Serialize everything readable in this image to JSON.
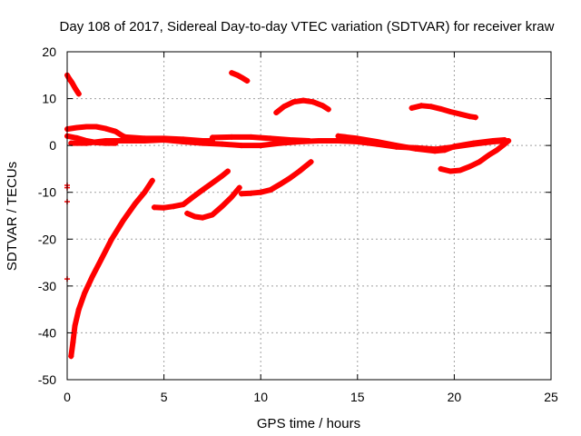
{
  "chart_data": {
    "type": "scatter",
    "title": "Day 108 of 2017, Sidereal Day-to-day VTEC variation (SDTVAR) for receiver kraw",
    "xlabel": "GPS time / hours",
    "ylabel": "SDTVAR / TECUs",
    "xlim": [
      0,
      25
    ],
    "ylim": [
      -50,
      20
    ],
    "xticks": [
      0,
      5,
      10,
      15,
      20,
      25
    ],
    "yticks": [
      -50,
      -40,
      -30,
      -20,
      -10,
      0,
      10,
      20
    ],
    "grid": true,
    "legend": "none",
    "color": "#ff0000",
    "series": [
      {
        "values": [
          [
            0.0,
            15.0
          ],
          [
            0.1,
            14.3
          ],
          [
            0.25,
            13.4
          ],
          [
            0.4,
            12.3
          ],
          [
            0.6,
            11.0
          ]
        ]
      },
      {
        "values": [
          [
            0.2,
            -45.0
          ],
          [
            0.3,
            -42.0
          ],
          [
            0.4,
            -38.5
          ],
          [
            0.6,
            -35.0
          ],
          [
            0.9,
            -31.5
          ],
          [
            1.3,
            -28.0
          ],
          [
            1.8,
            -24.0
          ],
          [
            2.3,
            -20.0
          ],
          [
            2.9,
            -16.0
          ],
          [
            3.5,
            -12.5
          ],
          [
            4.0,
            -10.0
          ],
          [
            4.4,
            -7.5
          ]
        ]
      },
      {
        "values": [
          [
            4.5,
            -13.2
          ],
          [
            5.0,
            -13.3
          ],
          [
            5.5,
            -13.0
          ],
          [
            6.0,
            -12.6
          ],
          [
            6.5,
            -11.0
          ],
          [
            7.0,
            -9.5
          ],
          [
            7.5,
            -8.0
          ],
          [
            8.0,
            -6.5
          ],
          [
            8.3,
            -5.5
          ]
        ]
      },
      {
        "values": [
          [
            6.2,
            -14.5
          ],
          [
            6.6,
            -15.2
          ],
          [
            7.0,
            -15.4
          ],
          [
            7.5,
            -14.8
          ],
          [
            8.0,
            -13.0
          ],
          [
            8.5,
            -11.0
          ],
          [
            8.9,
            -9.0
          ]
        ]
      },
      {
        "values": [
          [
            9.0,
            -10.3
          ],
          [
            9.5,
            -10.2
          ],
          [
            10.0,
            -10.0
          ],
          [
            10.5,
            -9.5
          ],
          [
            11.0,
            -8.3
          ],
          [
            11.5,
            -7.0
          ],
          [
            12.0,
            -5.5
          ],
          [
            12.3,
            -4.5
          ],
          [
            12.6,
            -3.5
          ]
        ]
      },
      {
        "values": [
          [
            8.5,
            15.5
          ],
          [
            8.8,
            15.0
          ],
          [
            9.1,
            14.3
          ],
          [
            9.3,
            13.8
          ]
        ]
      },
      {
        "values": [
          [
            10.8,
            7.0
          ],
          [
            11.2,
            8.3
          ],
          [
            11.7,
            9.3
          ],
          [
            12.2,
            9.6
          ],
          [
            12.7,
            9.3
          ],
          [
            13.2,
            8.5
          ],
          [
            13.5,
            7.7
          ]
        ]
      },
      {
        "values": [
          [
            17.8,
            8.0
          ],
          [
            18.3,
            8.5
          ],
          [
            18.8,
            8.3
          ],
          [
            19.3,
            7.8
          ],
          [
            19.8,
            7.2
          ],
          [
            20.3,
            6.7
          ],
          [
            20.8,
            6.2
          ],
          [
            21.1,
            6.0
          ]
        ]
      },
      {
        "values": [
          [
            19.3,
            -5.0
          ],
          [
            19.8,
            -5.5
          ],
          [
            20.3,
            -5.3
          ],
          [
            20.8,
            -4.5
          ],
          [
            21.3,
            -3.5
          ],
          [
            21.8,
            -2.0
          ],
          [
            22.2,
            -1.0
          ],
          [
            22.6,
            0.3
          ],
          [
            22.8,
            1.0
          ]
        ]
      },
      {
        "values": [
          [
            0.0,
            3.5
          ],
          [
            0.5,
            3.8
          ],
          [
            1.0,
            4.0
          ],
          [
            1.5,
            4.0
          ],
          [
            2.0,
            3.6
          ],
          [
            2.5,
            3.0
          ],
          [
            2.8,
            2.2
          ],
          [
            3.2,
            1.3
          ]
        ]
      },
      {
        "values": [
          [
            0.0,
            2.0
          ],
          [
            0.5,
            1.6
          ],
          [
            1.0,
            1.0
          ],
          [
            1.5,
            0.6
          ],
          [
            2.0,
            0.5
          ],
          [
            2.5,
            0.5
          ]
        ]
      },
      {
        "values": [
          [
            0.2,
            0.5
          ],
          [
            1.0,
            0.5
          ],
          [
            2.0,
            1.0
          ],
          [
            3.0,
            1.0
          ],
          [
            4.0,
            1.0
          ],
          [
            5.0,
            1.2
          ],
          [
            6.0,
            0.8
          ],
          [
            7.0,
            0.5
          ],
          [
            8.0,
            0.3
          ],
          [
            9.0,
            0.0
          ],
          [
            10.0,
            0.0
          ],
          [
            11.0,
            0.5
          ],
          [
            12.0,
            0.8
          ],
          [
            13.0,
            1.0
          ],
          [
            14.0,
            1.0
          ],
          [
            15.0,
            0.8
          ],
          [
            16.0,
            0.3
          ],
          [
            17.0,
            -0.3
          ],
          [
            18.0,
            -0.5
          ],
          [
            19.0,
            -0.8
          ],
          [
            20.0,
            -0.3
          ],
          [
            21.0,
            0.3
          ],
          [
            22.0,
            0.8
          ],
          [
            22.8,
            1.0
          ]
        ]
      },
      {
        "values": [
          [
            3.0,
            1.8
          ],
          [
            4.0,
            1.5
          ],
          [
            5.0,
            1.5
          ],
          [
            6.0,
            1.3
          ],
          [
            7.0,
            1.0
          ],
          [
            7.5,
            1.0
          ]
        ]
      },
      {
        "values": [
          [
            7.5,
            1.7
          ],
          [
            8.5,
            1.8
          ],
          [
            9.5,
            1.8
          ],
          [
            10.5,
            1.5
          ],
          [
            11.5,
            1.2
          ],
          [
            12.5,
            1.0
          ]
        ]
      },
      {
        "values": [
          [
            14.0,
            2.0
          ],
          [
            15.0,
            1.5
          ],
          [
            16.0,
            0.8
          ],
          [
            17.0,
            0.0
          ],
          [
            18.0,
            -0.7
          ],
          [
            19.0,
            -1.2
          ],
          [
            19.5,
            -1.0
          ],
          [
            20.0,
            -0.2
          ],
          [
            21.0,
            0.5
          ],
          [
            22.0,
            1.0
          ],
          [
            22.6,
            1.2
          ]
        ]
      },
      {
        "values": [
          [
            0.0,
            -8.5
          ],
          [
            0.0,
            -9.0
          ],
          [
            0.0,
            -28.5
          ],
          [
            0.0,
            -12.0
          ]
        ]
      }
    ]
  }
}
